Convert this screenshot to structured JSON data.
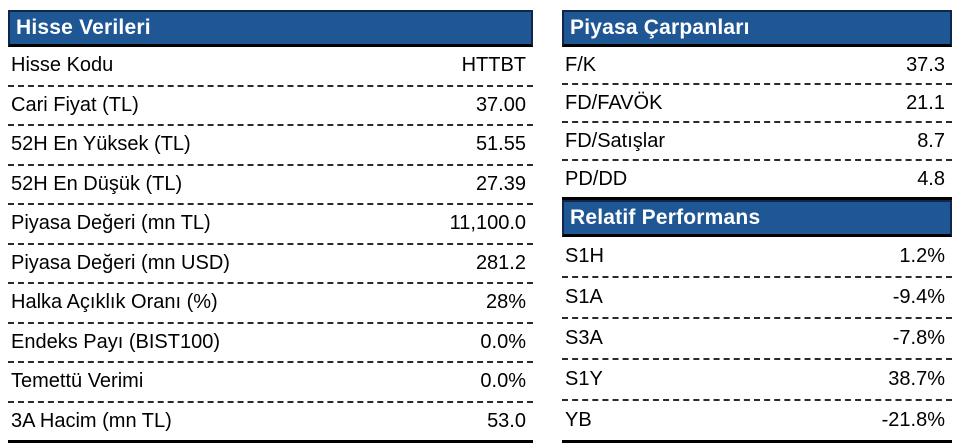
{
  "colors": {
    "header_bg": "#1f5795",
    "header_outline": "#10264d",
    "rule": "#000000",
    "dashed_divider": "#2a2a2a",
    "header_text": "#ffffff",
    "body_text": "#000000"
  },
  "stock_data": {
    "title": "Hisse Verileri",
    "rows": [
      {
        "label": "Hisse Kodu",
        "value": "HTTBT"
      },
      {
        "label": "Cari Fiyat (TL)",
        "value": "37.00"
      },
      {
        "label": "52H En Yüksek (TL)",
        "value": "51.55"
      },
      {
        "label": "52H En Düşük (TL)",
        "value": "27.39"
      },
      {
        "label": "Piyasa Değeri (mn TL)",
        "value": "11,100.0"
      },
      {
        "label": "Piyasa Değeri (mn USD)",
        "value": "281.2"
      },
      {
        "label": "Halka Açıklık Oranı (%)",
        "value": "28%"
      },
      {
        "label": "Endeks Payı (BIST100)",
        "value": "0.0%"
      },
      {
        "label": "Temettü Verimi",
        "value": "0.0%"
      },
      {
        "label": "3A Hacim (mn TL)",
        "value": "53.0"
      }
    ]
  },
  "market_multiples": {
    "title": "Piyasa Çarpanları",
    "rows": [
      {
        "label": "F/K",
        "value": "37.3"
      },
      {
        "label": "FD/FAVÖK",
        "value": "21.1"
      },
      {
        "label": "FD/Satışlar",
        "value": "8.7"
      },
      {
        "label": "PD/DD",
        "value": "4.8"
      }
    ]
  },
  "relative_performance": {
    "title": "Relatif Performans",
    "rows": [
      {
        "label": "S1H",
        "value": "1.2%"
      },
      {
        "label": "S1A",
        "value": "-9.4%"
      },
      {
        "label": "S3A",
        "value": "-7.8%"
      },
      {
        "label": "S1Y",
        "value": "38.7%"
      },
      {
        "label": "YB",
        "value": "-21.8%"
      }
    ]
  }
}
